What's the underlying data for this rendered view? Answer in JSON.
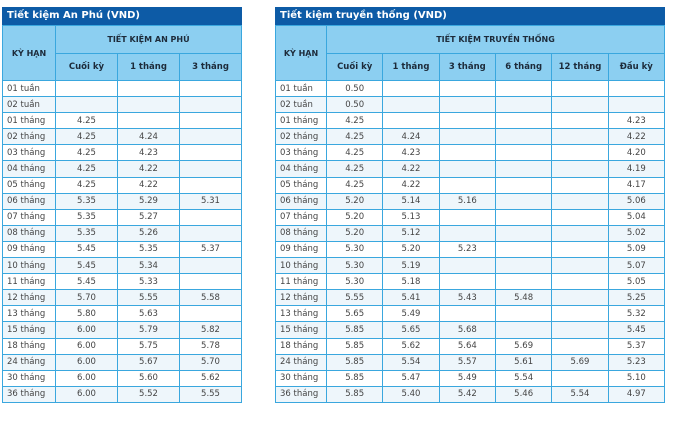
{
  "left_table": {
    "title": "Tiết kiệm An Phú (VND)",
    "term_header": "KỲ HẠN",
    "group_header": "TIẾT KIỆM AN PHÚ",
    "columns": [
      "Cuối kỳ",
      "1 tháng",
      "3 tháng"
    ],
    "rows": [
      {
        "term": "01 tuần",
        "values": [
          "",
          "",
          ""
        ]
      },
      {
        "term": "02 tuần",
        "values": [
          "",
          "",
          ""
        ]
      },
      {
        "term": "01 tháng",
        "values": [
          "4.25",
          "",
          ""
        ]
      },
      {
        "term": "02 tháng",
        "values": [
          "4.25",
          "4.24",
          ""
        ]
      },
      {
        "term": "03 tháng",
        "values": [
          "4.25",
          "4.23",
          ""
        ]
      },
      {
        "term": "04 tháng",
        "values": [
          "4.25",
          "4.22",
          ""
        ]
      },
      {
        "term": "05 tháng",
        "values": [
          "4.25",
          "4.22",
          ""
        ]
      },
      {
        "term": "06 tháng",
        "values": [
          "5.35",
          "5.29",
          "5.31"
        ]
      },
      {
        "term": "07 tháng",
        "values": [
          "5.35",
          "5.27",
          ""
        ]
      },
      {
        "term": "08 tháng",
        "values": [
          "5.35",
          "5.26",
          ""
        ]
      },
      {
        "term": "09 tháng",
        "values": [
          "5.45",
          "5.35",
          "5.37"
        ]
      },
      {
        "term": "10 tháng",
        "values": [
          "5.45",
          "5.34",
          ""
        ]
      },
      {
        "term": "11 tháng",
        "values": [
          "5.45",
          "5.33",
          ""
        ]
      },
      {
        "term": "12 tháng",
        "values": [
          "5.70",
          "5.55",
          "5.58"
        ]
      },
      {
        "term": "13 tháng",
        "values": [
          "5.80",
          "5.63",
          ""
        ]
      },
      {
        "term": "15 tháng",
        "values": [
          "6.00",
          "5.79",
          "5.82"
        ]
      },
      {
        "term": "18 tháng",
        "values": [
          "6.00",
          "5.75",
          "5.78"
        ]
      },
      {
        "term": "24 tháng",
        "values": [
          "6.00",
          "5.67",
          "5.70"
        ]
      },
      {
        "term": "30 tháng",
        "values": [
          "6.00",
          "5.60",
          "5.62"
        ]
      },
      {
        "term": "36 tháng",
        "values": [
          "6.00",
          "5.52",
          "5.55"
        ]
      }
    ]
  },
  "right_table": {
    "title": "Tiết kiệm truyền thống (VND)",
    "term_header": "KỲ HẠN",
    "group_header": "TIẾT KIỆM TRUYỀN THỐNG",
    "columns": [
      "Cuối kỳ",
      "1 tháng",
      "3 tháng",
      "6 tháng",
      "12 tháng",
      "Đầu kỳ"
    ],
    "rows": [
      {
        "term": "01 tuần",
        "values": [
          "0.50",
          "",
          "",
          "",
          "",
          ""
        ]
      },
      {
        "term": "02 tuần",
        "values": [
          "0.50",
          "",
          "",
          "",
          "",
          ""
        ]
      },
      {
        "term": "01 tháng",
        "values": [
          "4.25",
          "",
          "",
          "",
          "",
          "4.23"
        ]
      },
      {
        "term": "02 tháng",
        "values": [
          "4.25",
          "4.24",
          "",
          "",
          "",
          "4.22"
        ]
      },
      {
        "term": "03 tháng",
        "values": [
          "4.25",
          "4.23",
          "",
          "",
          "",
          "4.20"
        ]
      },
      {
        "term": "04 tháng",
        "values": [
          "4.25",
          "4.22",
          "",
          "",
          "",
          "4.19"
        ]
      },
      {
        "term": "05 tháng",
        "values": [
          "4.25",
          "4.22",
          "",
          "",
          "",
          "4.17"
        ]
      },
      {
        "term": "06 tháng",
        "values": [
          "5.20",
          "5.14",
          "5.16",
          "",
          "",
          "5.06"
        ]
      },
      {
        "term": "07 tháng",
        "values": [
          "5.20",
          "5.13",
          "",
          "",
          "",
          "5.04"
        ]
      },
      {
        "term": "08 tháng",
        "values": [
          "5.20",
          "5.12",
          "",
          "",
          "",
          "5.02"
        ]
      },
      {
        "term": "09 tháng",
        "values": [
          "5.30",
          "5.20",
          "5.23",
          "",
          "",
          "5.09"
        ]
      },
      {
        "term": "10 tháng",
        "values": [
          "5.30",
          "5.19",
          "",
          "",
          "",
          "5.07"
        ]
      },
      {
        "term": "11 tháng",
        "values": [
          "5.30",
          "5.18",
          "",
          "",
          "",
          "5.05"
        ]
      },
      {
        "term": "12 tháng",
        "values": [
          "5.55",
          "5.41",
          "5.43",
          "5.48",
          "",
          "5.25"
        ]
      },
      {
        "term": "13 tháng",
        "values": [
          "5.65",
          "5.49",
          "",
          "",
          "",
          "5.32"
        ]
      },
      {
        "term": "15 tháng",
        "values": [
          "5.85",
          "5.65",
          "5.68",
          "",
          "",
          "5.45"
        ]
      },
      {
        "term": "18 tháng",
        "values": [
          "5.85",
          "5.62",
          "5.64",
          "5.69",
          "",
          "5.37"
        ]
      },
      {
        "term": "24 tháng",
        "values": [
          "5.85",
          "5.54",
          "5.57",
          "5.61",
          "5.69",
          "5.23"
        ]
      },
      {
        "term": "30 tháng",
        "values": [
          "5.85",
          "5.47",
          "5.49",
          "5.54",
          "",
          "5.10"
        ]
      },
      {
        "term": "36 tháng",
        "values": [
          "5.85",
          "5.40",
          "5.42",
          "5.46",
          "5.54",
          "4.97"
        ]
      }
    ]
  },
  "colors": {
    "title_bar": "#0d5ba6",
    "header": "#8ccff1",
    "border": "#3aa7de",
    "alt_row": "#eef6fb"
  }
}
